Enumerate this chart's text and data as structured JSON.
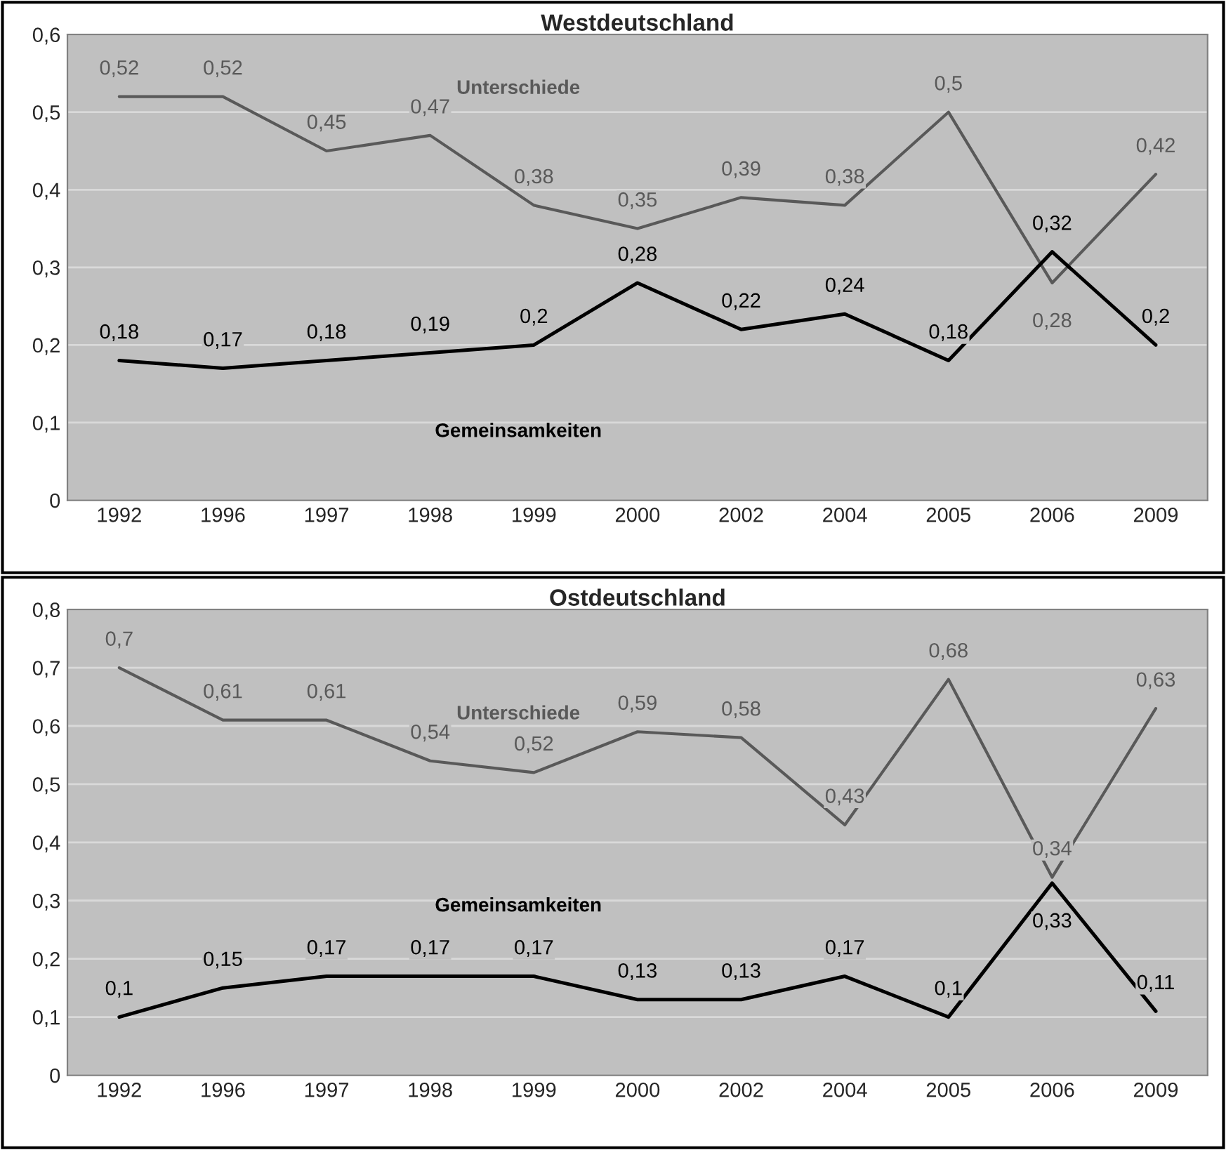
{
  "chart_data": [
    {
      "type": "line",
      "title": "Westdeutschland",
      "categories": [
        "1992",
        "1996",
        "1997",
        "1998",
        "1999",
        "2000",
        "2002",
        "2004",
        "2005",
        "2006",
        "2009"
      ],
      "series": [
        {
          "name": "Unterschiede",
          "color": "#595959",
          "values": [
            0.52,
            0.52,
            0.45,
            0.47,
            0.38,
            0.35,
            0.39,
            0.38,
            0.5,
            0.28,
            0.42
          ],
          "value_labels": [
            "0,52",
            "0,52",
            "0,45",
            "0,47",
            "0,38",
            "0,35",
            "0,39",
            "0,38",
            "0,5",
            "0,28",
            "0,42"
          ]
        },
        {
          "name": "Gemeinsamkeiten",
          "color": "#000000",
          "values": [
            0.18,
            0.17,
            0.18,
            0.19,
            0.2,
            0.28,
            0.22,
            0.24,
            0.18,
            0.32,
            0.2
          ],
          "value_labels": [
            "0,18",
            "0,17",
            "0,18",
            "0,19",
            "0,2",
            "0,28",
            "0,22",
            "0,24",
            "0,18",
            "0,32",
            "0,2"
          ]
        }
      ],
      "ylim": [
        0,
        0.6
      ],
      "yticks": [
        0,
        {
          "value": 0.1,
          "label": "0,1"
        },
        {
          "value": 0.2,
          "label": "0,2"
        },
        {
          "value": 0.3,
          "label": "0,3"
        },
        {
          "value": 0.4,
          "label": "0,4"
        },
        {
          "value": 0.5,
          "label": "0,5"
        },
        {
          "value": 0.6,
          "label": "0,6"
        }
      ],
      "grid": "y",
      "legend": false,
      "marker": "none",
      "line_style": "solid"
    },
    {
      "type": "line",
      "title": "Ostdeutschland",
      "categories": [
        "1992",
        "1996",
        "1997",
        "1998",
        "1999",
        "2000",
        "2002",
        "2004",
        "2005",
        "2006",
        "2009"
      ],
      "series": [
        {
          "name": "Unterschiede",
          "color": "#595959",
          "values": [
            0.7,
            0.61,
            0.61,
            0.54,
            0.52,
            0.59,
            0.58,
            0.43,
            0.68,
            0.34,
            0.63
          ],
          "value_labels": [
            "0,7",
            "0,61",
            "0,61",
            "0,54",
            "0,52",
            "0,59",
            "0,58",
            "0,43",
            "0,68",
            "0,34",
            "0,63"
          ]
        },
        {
          "name": "Gemeinsamkeiten",
          "color": "#000000",
          "values": [
            0.1,
            0.15,
            0.17,
            0.17,
            0.17,
            0.13,
            0.13,
            0.17,
            0.1,
            0.33,
            0.11
          ],
          "value_labels": [
            "0,1",
            "0,15",
            "0,17",
            "0,17",
            "0,17",
            "0,13",
            "0,13",
            "0,17",
            "0,1",
            "0,33",
            "0,11"
          ]
        }
      ],
      "ylim": [
        0,
        0.8
      ],
      "yticks": [
        0,
        {
          "value": 0.1,
          "label": "0,1"
        },
        {
          "value": 0.2,
          "label": "0,2"
        },
        {
          "value": 0.3,
          "label": "0,3"
        },
        {
          "value": 0.4,
          "label": "0,4"
        },
        {
          "value": 0.5,
          "label": "0,5"
        },
        {
          "value": 0.6,
          "label": "0,6"
        },
        {
          "value": 0.7,
          "label": "0,7"
        },
        {
          "value": 0.8,
          "label": "0,8"
        }
      ],
      "grid": "y",
      "legend": false,
      "marker": "none",
      "line_style": "solid"
    }
  ]
}
